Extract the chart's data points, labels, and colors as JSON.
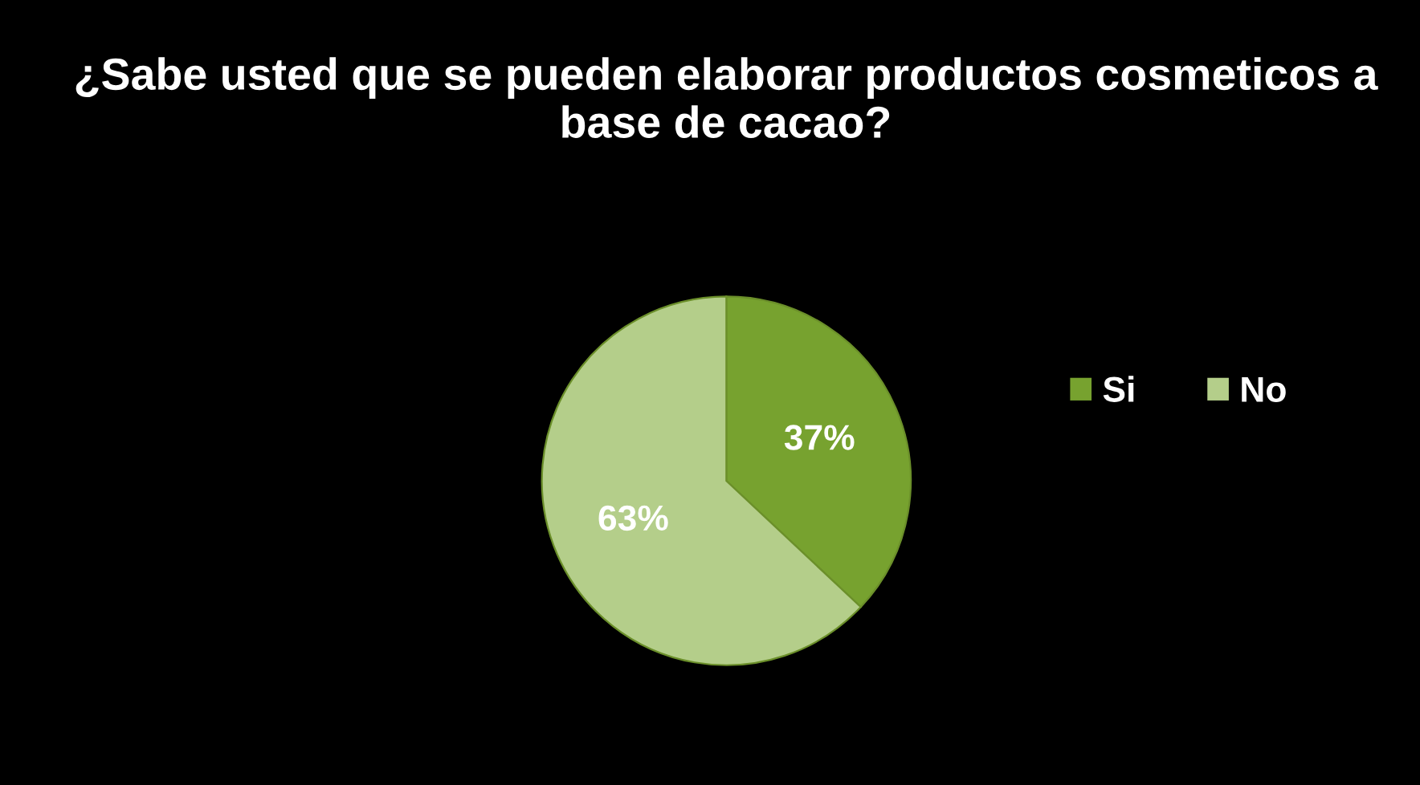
{
  "chart_data": {
    "type": "pie",
    "title": "¿Sabe usted que se pueden elaborar productos cosmeticos a base de cacao?",
    "categories": [
      "Si",
      "No"
    ],
    "values": [
      37,
      63
    ],
    "colors": [
      "#77a22f",
      "#b4ce8a"
    ],
    "value_labels": [
      "37%",
      "63%"
    ],
    "legend": "right"
  }
}
